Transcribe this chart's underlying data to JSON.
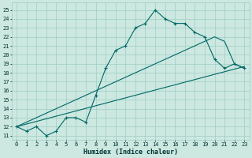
{
  "xlabel": "Humidex (Indice chaleur)",
  "xlim": [
    -0.5,
    23.5
  ],
  "ylim": [
    10.5,
    25.8
  ],
  "xticks": [
    0,
    1,
    2,
    3,
    4,
    5,
    6,
    7,
    8,
    9,
    10,
    11,
    12,
    13,
    14,
    15,
    16,
    17,
    18,
    19,
    20,
    21,
    22,
    23
  ],
  "yticks": [
    11,
    12,
    13,
    14,
    15,
    16,
    17,
    18,
    19,
    20,
    21,
    22,
    23,
    24,
    25
  ],
  "bg_color": "#cce8e0",
  "grid_color": "#9ecec4",
  "line_color": "#006666",
  "line1_x": [
    0,
    1,
    2,
    3,
    4,
    5,
    6,
    7,
    8,
    9,
    10,
    11,
    12,
    13,
    14,
    15,
    16,
    17,
    18,
    19,
    20,
    21,
    22,
    23
  ],
  "line1_y": [
    12,
    11.5,
    12,
    11,
    11.5,
    13,
    13,
    12.5,
    15.5,
    18.5,
    20.5,
    21,
    23,
    23.5,
    25,
    24,
    23.5,
    23.5,
    22.5,
    22,
    19.5,
    18.5,
    19,
    18.5
  ],
  "line2_x": [
    0,
    23
  ],
  "line2_y": [
    12,
    18.7
  ],
  "line3_x": [
    0,
    20,
    21,
    22,
    23
  ],
  "line3_y": [
    12,
    22,
    21.5,
    19,
    18.5
  ]
}
